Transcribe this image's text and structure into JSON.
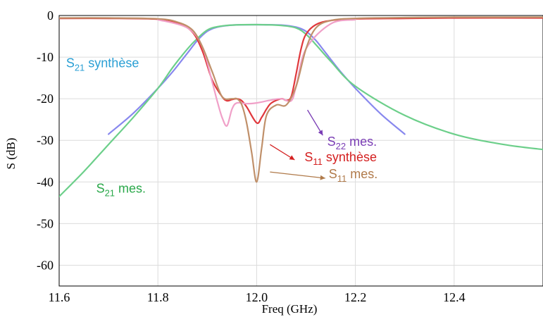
{
  "chart_data": {
    "type": "line",
    "xlabel": "Freq (GHz)",
    "ylabel": "S (dB)",
    "xlim": [
      11.6,
      12.58
    ],
    "ylim": [
      -65,
      0
    ],
    "xticks": [
      "11.6",
      "11.8",
      "12.0",
      "12.2",
      "12.4"
    ],
    "yticks": [
      "0",
      "-10",
      "-20",
      "-30",
      "-40",
      "-50",
      "-60"
    ],
    "xtick_values": [
      11.6,
      11.8,
      12.0,
      12.2,
      12.4
    ],
    "ytick_values": [
      0,
      -10,
      -20,
      -30,
      -40,
      -50,
      -60
    ],
    "grid": true,
    "series": [
      {
        "name": "S21 synthèse",
        "color": "#8888ee",
        "x": [
          11.7,
          11.75,
          11.8,
          11.83,
          11.86,
          11.88,
          11.9,
          11.92,
          11.95,
          12.0,
          12.05,
          12.08,
          12.1,
          12.12,
          12.14,
          12.17,
          12.2,
          12.25,
          12.3
        ],
        "y": [
          -28.5,
          -23.5,
          -17.5,
          -13.5,
          -9.0,
          -6.0,
          -3.8,
          -2.8,
          -2.3,
          -2.2,
          -2.3,
          -2.8,
          -3.8,
          -6.0,
          -9.0,
          -13.5,
          -17.5,
          -23.5,
          -28.5
        ]
      },
      {
        "name": "S21 mes.",
        "color": "#6ccf8a",
        "x": [
          11.6,
          11.65,
          11.7,
          11.75,
          11.8,
          11.83,
          11.86,
          11.88,
          11.9,
          11.92,
          11.95,
          12.0,
          12.05,
          12.08,
          12.1,
          12.12,
          12.15,
          12.2,
          12.3,
          12.4,
          12.5,
          12.58
        ],
        "y": [
          -43.5,
          -37.5,
          -31.0,
          -24.5,
          -17.5,
          -12.5,
          -8.0,
          -5.5,
          -3.5,
          -2.7,
          -2.3,
          -2.2,
          -2.4,
          -3.0,
          -4.5,
          -7.0,
          -11.0,
          -17.0,
          -24.0,
          -28.5,
          -31.0,
          -32.2
        ]
      },
      {
        "name": "S11 synthèse",
        "color": "#e0383c",
        "x": [
          11.6,
          11.7,
          11.8,
          11.84,
          11.87,
          11.89,
          11.91,
          11.93,
          11.94,
          11.95,
          11.96,
          11.97,
          11.98,
          12.0,
          12.01,
          12.02,
          12.03,
          12.05,
          12.06,
          12.07,
          12.08,
          12.09,
          12.1,
          12.12,
          12.15,
          12.2,
          12.3,
          12.4,
          12.58
        ],
        "y": [
          -0.7,
          -0.7,
          -0.9,
          -1.8,
          -4.0,
          -8.5,
          -15.5,
          -19.5,
          -20.5,
          -20.2,
          -20.0,
          -20.5,
          -22.0,
          -25.8,
          -24.5,
          -22.5,
          -21.0,
          -20.0,
          -20.4,
          -19.5,
          -14.0,
          -8.0,
          -4.5,
          -2.2,
          -1.2,
          -0.8,
          -0.7,
          -0.6,
          -0.6
        ]
      },
      {
        "name": "S22 mes.",
        "color": "#f0a0c8",
        "x": [
          11.8,
          11.86,
          11.89,
          11.91,
          11.92,
          11.93,
          11.94,
          11.95,
          11.96,
          11.98,
          12.0,
          12.03,
          12.05,
          12.07,
          12.08,
          12.1,
          12.15,
          12.2
        ],
        "y": [
          -1.0,
          -3.0,
          -7.5,
          -16.0,
          -20.5,
          -24.5,
          -26.5,
          -22.5,
          -21.0,
          -21.2,
          -21.0,
          -20.3,
          -20.0,
          -20.5,
          -17.0,
          -8.0,
          -2.0,
          -1.0
        ]
      },
      {
        "name": "S11 mes.",
        "color": "#c0906a",
        "x": [
          11.6,
          11.7,
          11.8,
          11.84,
          11.87,
          11.89,
          11.91,
          11.93,
          11.95,
          11.96,
          11.97,
          11.98,
          11.99,
          12.0,
          12.01,
          12.02,
          12.04,
          12.06,
          12.08,
          12.1,
          12.12,
          12.15,
          12.2,
          12.3,
          12.4,
          12.58
        ],
        "y": [
          -0.6,
          -0.6,
          -0.8,
          -1.6,
          -3.5,
          -7.5,
          -13.5,
          -19.5,
          -20.0,
          -20.0,
          -21.5,
          -26.0,
          -33.0,
          -40.0,
          -32.0,
          -24.0,
          -21.5,
          -21.5,
          -17.0,
          -8.0,
          -3.0,
          -1.2,
          -0.7,
          -0.5,
          -0.4,
          -0.4
        ]
      }
    ],
    "annotations": [
      {
        "id": "s21-synth",
        "main": "S",
        "sub": "21",
        "rest": " synthèse",
        "color": "#2a9fd4",
        "x": 11.614,
        "y": -12.4,
        "arrow": null
      },
      {
        "id": "s21-mes",
        "main": "S",
        "sub": "21",
        "rest": " mes.",
        "color": "#2aa84a",
        "x": 11.675,
        "y": -42.6,
        "arrow": null
      },
      {
        "id": "s22-mes",
        "main": "S",
        "sub": "22",
        "rest": " mes.",
        "color": "#7a3db5",
        "x": 12.143,
        "y": -31.3,
        "arrow": {
          "from": [
            12.103,
            -22.7
          ],
          "to": [
            12.134,
            -28.8
          ]
        }
      },
      {
        "id": "s11-synth",
        "main": "S",
        "sub": "11",
        "rest": " synthèse",
        "color": "#d42020",
        "x": 12.097,
        "y": -35.0,
        "arrow": {
          "from": [
            12.027,
            -31.0
          ],
          "to": [
            12.077,
            -34.7
          ]
        }
      },
      {
        "id": "s11-mes",
        "main": "S",
        "sub": "11",
        "rest": " mes.",
        "color": "#b07a4a",
        "x": 12.146,
        "y": -39.1,
        "arrow": {
          "from": [
            12.027,
            -37.6
          ],
          "to": [
            12.139,
            -39.1
          ]
        }
      }
    ]
  }
}
